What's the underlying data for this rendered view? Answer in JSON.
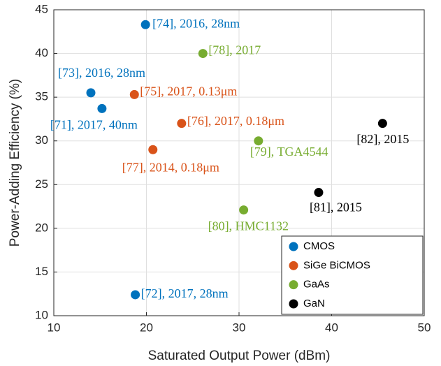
{
  "chart_data": {
    "type": "scatter",
    "xlabel": "Saturated Output Power (dBm)",
    "ylabel": "Power-Adding Efficiency (%)",
    "xlim": [
      10,
      50
    ],
    "xticks": [
      10,
      20,
      30,
      40,
      50
    ],
    "ylim": [
      10,
      45
    ],
    "yticks": [
      10,
      15,
      20,
      25,
      30,
      35,
      40,
      45
    ],
    "grid": true,
    "legend": "lower right",
    "series": [
      {
        "name": "CMOS",
        "color": "#0072BD",
        "x": [
          19.9,
          14.0,
          15.2,
          18.8
        ],
        "values": [
          43.3,
          35.5,
          33.7,
          12.4
        ],
        "labels": [
          "[74], 2016, 28nm",
          "[73], 2016, 28nm",
          "[71], 2017, 40nm",
          "[72], 2017, 28nm"
        ]
      },
      {
        "name": "SiGe BiCMOS",
        "color": "#D95319",
        "x": [
          18.7,
          23.8,
          20.7
        ],
        "values": [
          35.3,
          32.0,
          29.0
        ],
        "labels": [
          "[75], 2017, 0.13μm",
          "[76], 2017, 0.18μm",
          "[77], 2014, 0.18μm"
        ]
      },
      {
        "name": "GaAs",
        "color": "#77AC30",
        "x": [
          26.1,
          32.1,
          30.5
        ],
        "values": [
          40.0,
          30.0,
          22.1
        ],
        "labels": [
          "[78], 2017",
          "[79], TGA4544",
          "[80], HMC1132"
        ]
      },
      {
        "name": "GaN",
        "color": "#000000",
        "x": [
          45.5,
          38.6
        ],
        "values": [
          32.0,
          24.1
        ],
        "labels": [
          "[82], 2015",
          "[81], 2015"
        ]
      }
    ]
  }
}
